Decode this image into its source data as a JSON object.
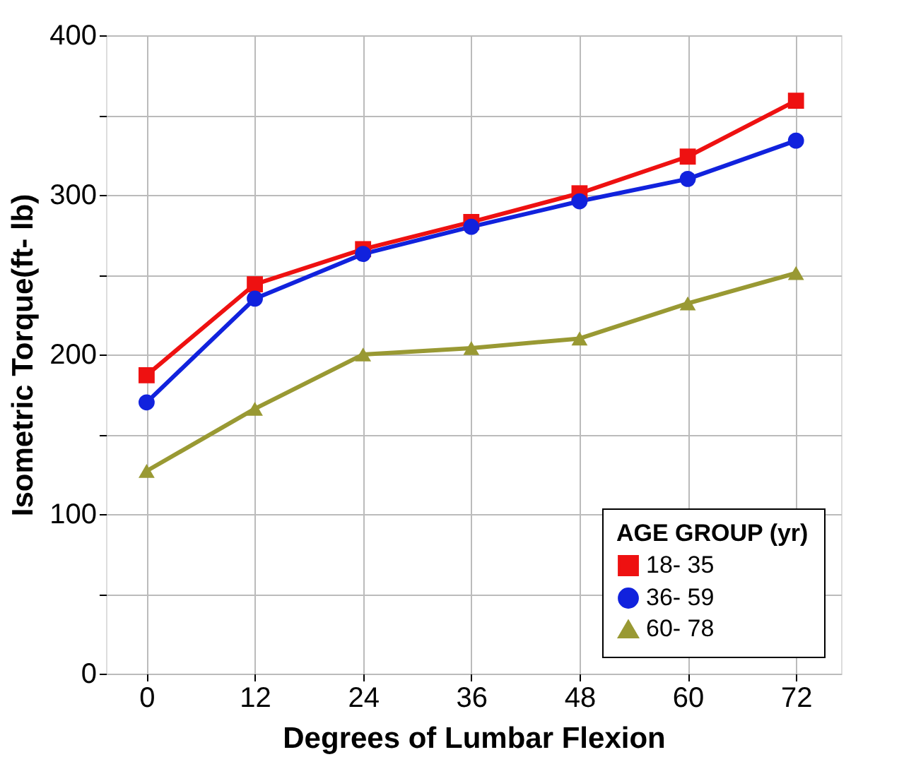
{
  "chart_data": {
    "type": "line",
    "xlabel": "Degrees of Lumbar Flexion",
    "ylabel": "Isometric Torque(ft- lb)",
    "x": [
      0,
      12,
      24,
      36,
      48,
      60,
      72
    ],
    "xlim": [
      -4.5,
      77
    ],
    "xticks": [
      0,
      12,
      24,
      36,
      48,
      60,
      72
    ],
    "ylim": [
      0,
      400
    ],
    "yticks": [
      0,
      {
        "value": 50,
        "label": null
      },
      100,
      {
        "value": 150,
        "label": null
      },
      200,
      {
        "value": 250,
        "label": null
      },
      300,
      {
        "value": 350,
        "label": null
      },
      400
    ],
    "grid": true,
    "legend": "bottom right",
    "legend_title": "AGE GROUP (yr)",
    "line_style": "solid",
    "series": [
      {
        "name": "18- 35",
        "color": "#ee1111",
        "marker": "square",
        "values": [
          187,
          244,
          266,
          283,
          301,
          324,
          359
        ]
      },
      {
        "name": "36- 59",
        "color": "#1122dd",
        "marker": "circle",
        "values": [
          170,
          235,
          263,
          280,
          296,
          310,
          334
        ]
      },
      {
        "name": "60- 78",
        "color": "#999933",
        "marker": "triangle",
        "values": [
          127,
          166,
          200,
          204,
          210,
          232,
          251
        ]
      }
    ]
  }
}
